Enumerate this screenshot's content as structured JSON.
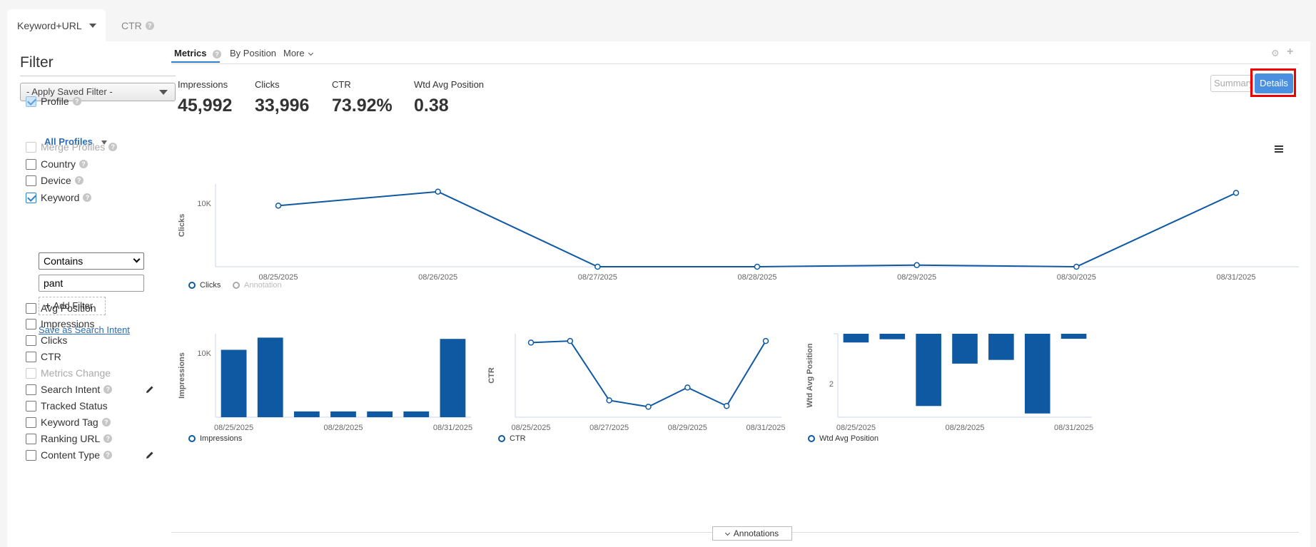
{
  "top_tabs": [
    {
      "label": "Keyword+URL"
    },
    {
      "label": "CTR"
    }
  ],
  "sidebar": {
    "title": "Filter",
    "saved_filter": "- Apply Saved Filter -",
    "profile_label": "Profile",
    "all_profiles": "All Profiles",
    "merge_profiles": "Merge Profiles",
    "country": "Country",
    "device": "Device",
    "keyword": "Keyword",
    "contains": "Contains",
    "keyword_value": "pant",
    "add_filter": "Add Filter",
    "save_intent": "Save as Search Intent",
    "avg_position": "Avg Position",
    "impressions": "Impressions",
    "clicks": "Clicks",
    "ctr": "CTR",
    "metrics_change": "Metrics Change",
    "search_intent": "Search Intent",
    "tracked_status": "Tracked Status",
    "keyword_tag": "Keyword Tag",
    "ranking_url": "Ranking URL",
    "content_type": "Content Type"
  },
  "subtabs": {
    "metrics": "Metrics",
    "by_position": "By Position",
    "more": "More"
  },
  "kpis": {
    "impressions_label": "Impressions",
    "impressions_value": "45,992",
    "clicks_label": "Clicks",
    "clicks_value": "33,996",
    "ctr_label": "CTR",
    "ctr_value": "73.92%",
    "pos_label": "Wtd Avg Position",
    "pos_value": "0.38"
  },
  "view_toggle": {
    "summary": "Summary",
    "details": "Details"
  },
  "annotations_button": "Annotations",
  "colors": {
    "series": "#0e59a2",
    "accent": "#4b8fe0",
    "highlight": "#e00000"
  },
  "chart_data": [
    {
      "type": "line",
      "ylabel": "Clicks",
      "x": [
        "08/25/2025",
        "08/26/2025",
        "08/27/2025",
        "08/28/2025",
        "08/29/2025",
        "08/30/2025",
        "08/31/2025"
      ],
      "y_ticks": [
        "10K"
      ],
      "series": [
        {
          "name": "Clicks",
          "values": [
            9600,
            11800,
            0,
            0,
            250,
            0,
            11600
          ]
        }
      ],
      "legend": [
        "Clicks",
        "Annotation"
      ],
      "ylim": [
        0,
        13000
      ]
    },
    {
      "type": "bar",
      "ylabel": "Impressions",
      "x": [
        "08/25/2025",
        "08/26/2025",
        "08/27/2025",
        "08/28/2025",
        "08/29/2025",
        "08/30/2025",
        "08/31/2025"
      ],
      "x_tick_labels": [
        "08/25/2025",
        "08/28/2025",
        "08/31/2025"
      ],
      "y_ticks": [
        "10K"
      ],
      "series": [
        {
          "name": "Impressions",
          "values": [
            10500,
            12400,
            900,
            900,
            900,
            900,
            12200
          ]
        }
      ],
      "legend": [
        "Impressions"
      ],
      "ylim": [
        0,
        13000
      ]
    },
    {
      "type": "line",
      "ylabel": "CTR",
      "x": [
        "08/25/2025",
        "08/26/2025",
        "08/27/2025",
        "08/28/2025",
        "08/29/2025",
        "08/30/2025",
        "08/31/2025"
      ],
      "x_tick_labels": [
        "08/25/2025",
        "08/27/2025",
        "08/29/2025",
        "08/31/2025"
      ],
      "series": [
        {
          "name": "CTR",
          "values": [
            0.93,
            0.95,
            0.21,
            0.13,
            0.37,
            0.14,
            0.95
          ]
        }
      ],
      "legend": [
        "CTR"
      ],
      "ylim": [
        0,
        1.04
      ]
    },
    {
      "type": "bar",
      "ylabel": "Wtd Avg Position",
      "reversed": true,
      "x": [
        "08/25/2025",
        "08/26/2025",
        "08/27/2025",
        "08/28/2025",
        "08/29/2025",
        "08/30/2025",
        "08/31/2025"
      ],
      "x_tick_labels": [
        "08/25/2025",
        "08/28/2025",
        "08/31/2025"
      ],
      "y_ticks": [
        "2"
      ],
      "series": [
        {
          "name": "Wtd Avg Position",
          "values": [
            0.35,
            0.22,
            2.9,
            1.2,
            1.05,
            3.2,
            0.2
          ]
        }
      ],
      "legend": [
        "Wtd Avg Position"
      ],
      "ylim": [
        0,
        3.35
      ]
    }
  ]
}
